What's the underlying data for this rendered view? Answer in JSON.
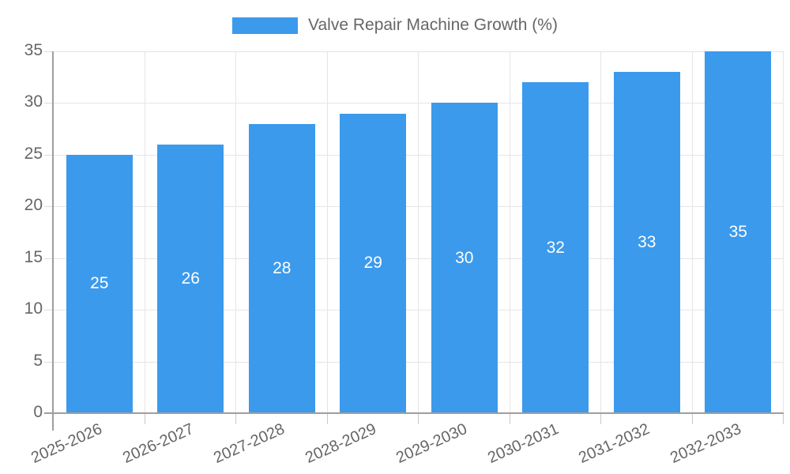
{
  "legend": {
    "label": "Valve Repair Machine Growth (%)"
  },
  "chart_data": {
    "type": "bar",
    "title": "Valve Repair Machine Growth (%)",
    "categories": [
      "2025-2026",
      "2026-2027",
      "2027-2028",
      "2028-2029",
      "2029-2030",
      "2030-2031",
      "2031-2032",
      "2032-2033"
    ],
    "values": [
      25,
      26,
      28,
      29,
      30,
      32,
      33,
      35
    ],
    "value_labels": [
      "25",
      "26",
      "28",
      "29",
      "30",
      "32",
      "33",
      "35"
    ],
    "xlabel": "",
    "ylabel": "",
    "ylim": [
      0,
      35
    ],
    "yticks": [
      0,
      5,
      10,
      15,
      20,
      25,
      30,
      35
    ],
    "grid": true,
    "legend_position": "top",
    "bar_color": "#3b9aec",
    "value_label_color": "#ffffff",
    "axis_text_color": "#666666",
    "gridline_color": "#e5e5e5",
    "axis_border_color": "#9e9e9e",
    "background_color": "#ffffff"
  }
}
